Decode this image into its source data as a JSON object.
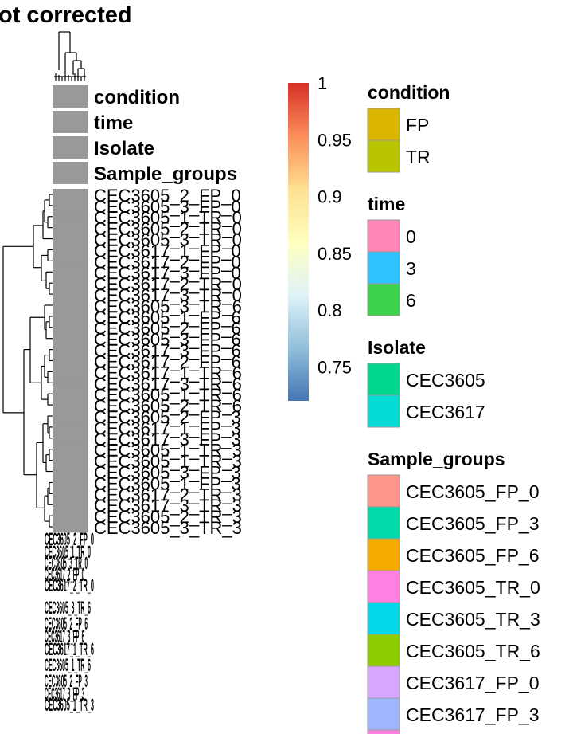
{
  "chart_data": {
    "type": "heatmap",
    "title": "ot corrected",
    "annotation_tracks": [
      "condition",
      "time",
      "Isolate",
      "Sample_groups"
    ],
    "row_labels": [
      "CEC3605_2_FP_0",
      "CEC3605_3_FP_0",
      "CEC3605_1_TR_0",
      "CEC3605_2_TR_0",
      "CEC3605_3_TR_0",
      "CEC3617_1_FP_0",
      "CEC3617_2_FP_0",
      "CEC3617_3_FP_0",
      "CEC3617_2_TR_0",
      "CEC3617_3_TR_0",
      "CEC3605_3_TR_6",
      "CEC3605_1_FP_6",
      "CEC3605_2_FP_6",
      "CEC3605_3_FP_6",
      "CEC3617_3_FP_6",
      "CEC3617_2_FP_6",
      "CEC3617_1_TR_6",
      "CEC3617_3_TR_6",
      "CEC3605_1_TR_6",
      "CEC3605_2_TR_6",
      "CEC3605_2_FP_3",
      "CEC3617_1_FP_3",
      "CEC3617_3_FP_3",
      "CEC3605_1_TR_3",
      "CEC3605_1_TR_3",
      "CEC3605_3_FP_3",
      "CEC3605_1_FP_3",
      "CEC3617_2_TR_3",
      "CEC3617_3_TR_3",
      "CEC3605_2_TR_3",
      "CEC3605_3_TR_3"
    ],
    "colorbar": {
      "range": [
        0.72,
        1
      ],
      "ticks": [
        1,
        0.95,
        0.9,
        0.85,
        0.8,
        0.75
      ],
      "colors": [
        "#4575b4",
        "#91bfdb",
        "#e0f3f8",
        "#ffffbf",
        "#fee090",
        "#fc8d59",
        "#d73027"
      ]
    },
    "cell_color": "#999999",
    "legends": [
      {
        "title": "condition",
        "items": [
          {
            "label": "FP",
            "color": "#dbb600"
          },
          {
            "label": "TR",
            "color": "#b8c400"
          }
        ]
      },
      {
        "title": "time",
        "items": [
          {
            "label": "0",
            "color": "#ff85b8"
          },
          {
            "label": "3",
            "color": "#2ec3ff"
          },
          {
            "label": "6",
            "color": "#3ed24a"
          }
        ]
      },
      {
        "title": "Isolate",
        "items": [
          {
            "label": "CEC3605",
            "color": "#00d68f"
          },
          {
            "label": "CEC3617",
            "color": "#00dcd3"
          }
        ]
      },
      {
        "title": "Sample_groups",
        "items": [
          {
            "label": "CEC3605_FP_0",
            "color": "#ff968a"
          },
          {
            "label": "CEC3605_FP_3",
            "color": "#00d9a8"
          },
          {
            "label": "CEC3605_FP_6",
            "color": "#f5aa00"
          },
          {
            "label": "CEC3605_TR_0",
            "color": "#ff80e0"
          },
          {
            "label": "CEC3605_TR_3",
            "color": "#00d8ea"
          },
          {
            "label": "CEC3605_TR_6",
            "color": "#8ccc00"
          },
          {
            "label": "CEC3617_FP_0",
            "color": "#d9a6ff"
          },
          {
            "label": "CEC3617_FP_3",
            "color": "#9fb6ff"
          },
          {
            "label": "",
            "color": "#ff80e0"
          }
        ]
      }
    ]
  }
}
